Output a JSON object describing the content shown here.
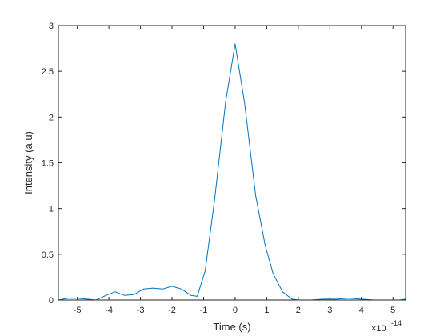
{
  "chart_data": {
    "type": "line",
    "title": "",
    "xlabel": "Time (s)",
    "ylabel": "Intensity (a.u)",
    "x_exponent_label": "×10",
    "x_exponent_power": "-14",
    "x_scale": 1e-14,
    "xlim": [
      -5.6,
      5.4
    ],
    "ylim": [
      0,
      3
    ],
    "xticks": [
      -5,
      -4,
      -3,
      -2,
      -1,
      0,
      1,
      2,
      3,
      4,
      5
    ],
    "yticks": [
      0,
      0.5,
      1,
      1.5,
      2,
      2.5,
      3
    ],
    "xtick_labels": [
      "-5",
      "-4",
      "-3",
      "-2",
      "-1",
      "0",
      "1",
      "2",
      "3",
      "4",
      "5"
    ],
    "ytick_labels": [
      "0",
      "0.5",
      "1",
      "1.5",
      "2",
      "2.5",
      "3"
    ],
    "grid": false,
    "box": true,
    "series": [
      {
        "color": "#0072BD",
        "x": [
          -5.6,
          -5.3,
          -5.0,
          -4.7,
          -4.4,
          -4.1,
          -3.8,
          -3.5,
          -3.2,
          -2.9,
          -2.6,
          -2.3,
          -2.0,
          -1.7,
          -1.4,
          -1.2,
          -0.95,
          -0.65,
          -0.3,
          0.0,
          0.3,
          0.65,
          0.95,
          1.2,
          1.5,
          1.8,
          2.0,
          2.4,
          2.8,
          3.2,
          3.6,
          4.0,
          4.4,
          4.8,
          5.2,
          5.4
        ],
        "y": [
          0.0,
          0.02,
          0.02,
          0.01,
          0.0,
          0.05,
          0.09,
          0.05,
          0.06,
          0.12,
          0.13,
          0.12,
          0.15,
          0.12,
          0.05,
          0.04,
          0.32,
          1.1,
          2.17,
          2.8,
          2.15,
          1.14,
          0.6,
          0.29,
          0.09,
          0.01,
          0.0,
          0.0,
          0.01,
          0.01,
          0.02,
          0.01,
          0.0,
          0.0,
          0.0,
          0.01
        ]
      }
    ]
  }
}
